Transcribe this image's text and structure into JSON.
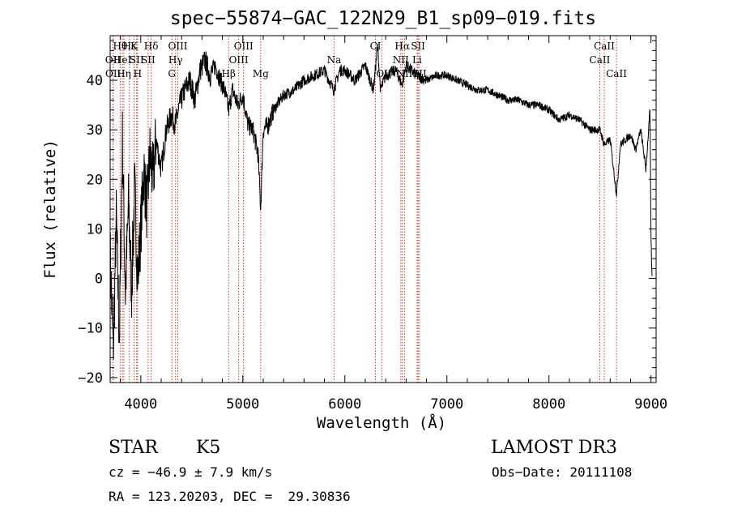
{
  "chart_data": {
    "type": "line",
    "title": "spec−55874−GAC_122N29_B1_sp09−019.fits",
    "xlabel": "Wavelength (Å)",
    "ylabel": "Flux (relative)",
    "xlim": [
      3700,
      9050
    ],
    "ylim": [
      -21,
      49
    ],
    "xticks": [
      4000,
      5000,
      6000,
      7000,
      8000,
      9000
    ],
    "xtick_labels": [
      "4000",
      "5000",
      "6000",
      "7000",
      "8000",
      "9000"
    ],
    "yticks": [
      -20,
      -10,
      0,
      10,
      20,
      30,
      40
    ],
    "ytick_labels": [
      "−20",
      "−10",
      "0",
      "10",
      "20",
      "30",
      "40"
    ],
    "series": [
      {
        "name": "flux",
        "x": [
          3700,
          3730,
          3760,
          3790,
          3820,
          3850,
          3880,
          3910,
          3940,
          3970,
          4000,
          4030,
          4060,
          4090,
          4120,
          4150,
          4200,
          4250,
          4300,
          4340,
          4380,
          4430,
          4480,
          4530,
          4580,
          4630,
          4680,
          4730,
          4780,
          4820,
          4861,
          4900,
          4950,
          5000,
          5050,
          5100,
          5150,
          5175,
          5200,
          5250,
          5300,
          5400,
          5500,
          5600,
          5700,
          5800,
          5890,
          5950,
          6000,
          6100,
          6200,
          6280,
          6320,
          6350,
          6400,
          6500,
          6560,
          6600,
          6700,
          6800,
          6900,
          7000,
          7100,
          7200,
          7300,
          7400,
          7500,
          7600,
          7700,
          7800,
          7900,
          8000,
          8100,
          8200,
          8300,
          8400,
          8500,
          8542,
          8600,
          8662,
          8700,
          8800,
          8850,
          8900,
          8950,
          8990,
          9000,
          9010
        ],
        "y": [
          5,
          -15,
          12,
          -12,
          28,
          -3,
          15,
          -2,
          18,
          0,
          10,
          22,
          14,
          25,
          20,
          28,
          22,
          30,
          33,
          31,
          35,
          38,
          40,
          36,
          42,
          44,
          41,
          43,
          40,
          38,
          34,
          38,
          35,
          37,
          31,
          30,
          25,
          14,
          30,
          31,
          34,
          37,
          38,
          40,
          41,
          42,
          38,
          42,
          42,
          40,
          43,
          38,
          47,
          38,
          41,
          42,
          39,
          43,
          41,
          40,
          41,
          41,
          40,
          39,
          38,
          38,
          37,
          36,
          36,
          35,
          35,
          34,
          32,
          33,
          32,
          30,
          30,
          27,
          28,
          17,
          27,
          29,
          26,
          30,
          22,
          34,
          8,
          0
        ]
      }
    ],
    "lines": [
      {
        "name": "OII",
        "x": 3727,
        "label_row": 2
      },
      {
        "name": "OII",
        "x": 3729,
        "label_row": 3
      },
      {
        "name": "Hθ",
        "x": 3798,
        "label_row": 1
      },
      {
        "name": "HeI",
        "x": 3820,
        "label_row": 2
      },
      {
        "name": "Hη",
        "x": 3835,
        "label_row": 3
      },
      {
        "name": "Hε",
        "x": 3889,
        "label_row": 1
      },
      {
        "name": "K",
        "x": 3934,
        "label_row": 1
      },
      {
        "name": "SII",
        "x": 3960,
        "label_row": 2
      },
      {
        "name": "H",
        "x": 3969,
        "label_row": 3
      },
      {
        "name": "Hδ",
        "x": 4102,
        "label_row": 1
      },
      {
        "name": "SII",
        "x": 4072,
        "label_row": 2
      },
      {
        "name": "OIII",
        "x": 4363,
        "label_row": 1
      },
      {
        "name": "Hγ",
        "x": 4341,
        "label_row": 2
      },
      {
        "name": "G",
        "x": 4305,
        "label_row": 3
      },
      {
        "name": "Hβ",
        "x": 4861,
        "label_row": 3
      },
      {
        "name": "OIII",
        "x": 4959,
        "label_row": 2
      },
      {
        "name": "OIII",
        "x": 5007,
        "label_row": 1
      },
      {
        "name": "Mg",
        "x": 5175,
        "label_row": 3
      },
      {
        "name": "Na",
        "x": 5894,
        "label_row": 2
      },
      {
        "name": "CI",
        "x": 6300,
        "label_row": 1
      },
      {
        "name": "OI",
        "x": 6364,
        "label_row": 3
      },
      {
        "name": "Hα",
        "x": 6563,
        "label_row": 1
      },
      {
        "name": "NII",
        "x": 6548,
        "label_row": 2
      },
      {
        "name": "NII",
        "x": 6584,
        "label_row": 3
      },
      {
        "name": "SII",
        "x": 6717,
        "label_row": 1
      },
      {
        "name": "Li",
        "x": 6708,
        "label_row": 2
      },
      {
        "name": "SII",
        "x": 6731,
        "label_row": 3
      },
      {
        "name": "CaII",
        "x": 8542,
        "label_row": 1
      },
      {
        "name": "CaII",
        "x": 8498,
        "label_row": 2
      },
      {
        "name": "CaII",
        "x": 8662,
        "label_row": 3
      }
    ]
  },
  "info": {
    "class_label": "STAR",
    "subclass_label": "K5",
    "survey_label": "LAMOST DR3",
    "cz_text": "cz = −46.9 ± 7.9 km/s",
    "obs_date_text": "Obs−Date: 20111108",
    "radec_text": "RA = 123.20203, DEC =  29.30836"
  }
}
